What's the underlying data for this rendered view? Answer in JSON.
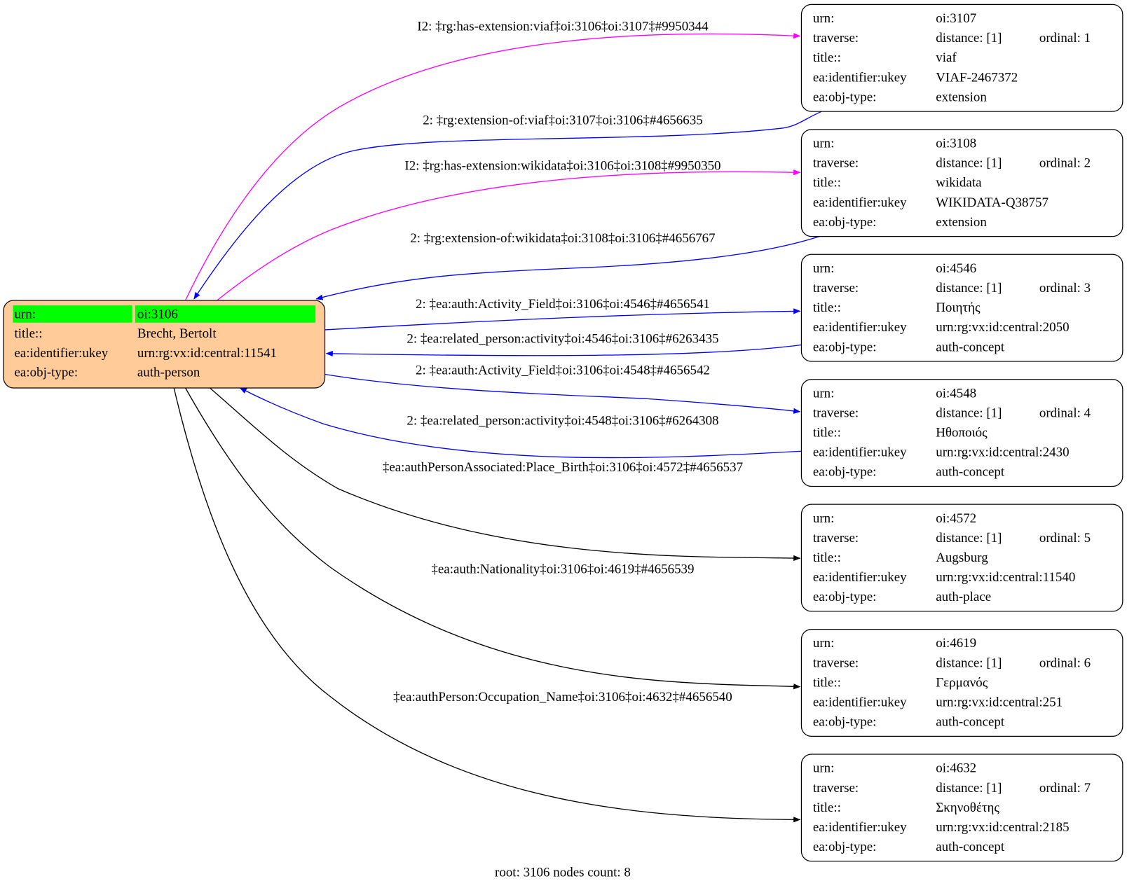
{
  "colors": {
    "root_fill": "#ffcc99",
    "urn_highlight": "#00ff00",
    "extension_edge": "#ff00ff",
    "relation_edge": "#0000ff",
    "default_edge": "#000000"
  },
  "field_labels": {
    "urn": "urn:",
    "traverse": "traverse:",
    "title": "title::",
    "ukey": "ea:identifier:ukey",
    "type": "ea:obj-type:"
  },
  "root": {
    "urn": "oi:3106",
    "title": "Brecht, Bertolt",
    "ukey": "urn:rg:vx:id:central:11541",
    "type": "auth-person"
  },
  "nodes": [
    {
      "urn": "oi:3107",
      "distance": "distance: [1]",
      "ordinal": "ordinal: 1",
      "title": "viaf",
      "ukey": "VIAF-2467372",
      "type": "extension"
    },
    {
      "urn": "oi:3108",
      "distance": "distance: [1]",
      "ordinal": "ordinal: 2",
      "title": "wikidata",
      "ukey": "WIKIDATA-Q38757",
      "type": "extension"
    },
    {
      "urn": "oi:4546",
      "distance": "distance: [1]",
      "ordinal": "ordinal: 3",
      "title": "Ποιητής",
      "ukey": "urn:rg:vx:id:central:2050",
      "type": "auth-concept"
    },
    {
      "urn": "oi:4548",
      "distance": "distance: [1]",
      "ordinal": "ordinal: 4",
      "title": "Ηθοποιός",
      "ukey": "urn:rg:vx:id:central:2430",
      "type": "auth-concept"
    },
    {
      "urn": "oi:4572",
      "distance": "distance: [1]",
      "ordinal": "ordinal: 5",
      "title": "Augsburg",
      "ukey": "urn:rg:vx:id:central:11540",
      "type": "auth-place"
    },
    {
      "urn": "oi:4619",
      "distance": "distance: [1]",
      "ordinal": "ordinal: 6",
      "title": "Γερμανός",
      "ukey": "urn:rg:vx:id:central:251",
      "type": "auth-concept"
    },
    {
      "urn": "oi:4632",
      "distance": "distance: [1]",
      "ordinal": "ordinal: 7",
      "title": "Σκηνοθέτης",
      "ukey": "urn:rg:vx:id:central:2185",
      "type": "auth-concept"
    }
  ],
  "edges": [
    {
      "label": "I2: ‡rg:has-extension:viaf‡oi:3106‡oi:3107‡#9950344",
      "color": "#ff00ff"
    },
    {
      "label": "2: ‡rg:extension-of:viaf‡oi:3107‡oi:3106‡#4656635",
      "color": "#0000ff"
    },
    {
      "label": "I2: ‡rg:has-extension:wikidata‡oi:3106‡oi:3108‡#9950350",
      "color": "#ff00ff"
    },
    {
      "label": "2: ‡rg:extension-of:wikidata‡oi:3108‡oi:3106‡#4656767",
      "color": "#0000ff"
    },
    {
      "label": "2: ‡ea:auth:Activity_Field‡oi:3106‡oi:4546‡#4656541",
      "color": "#0000ff"
    },
    {
      "label": "2: ‡ea:related_person:activity‡oi:4546‡oi:3106‡#6263435",
      "color": "#0000ff"
    },
    {
      "label": "2: ‡ea:auth:Activity_Field‡oi:3106‡oi:4548‡#4656542",
      "color": "#0000ff"
    },
    {
      "label": "2: ‡ea:related_person:activity‡oi:4548‡oi:3106‡#6264308",
      "color": "#0000ff"
    },
    {
      "label": "‡ea:authPersonAssociated:Place_Birth‡oi:3106‡oi:4572‡#4656537",
      "color": "#000000"
    },
    {
      "label": "‡ea:auth:Nationality‡oi:3106‡oi:4619‡#4656539",
      "color": "#000000"
    },
    {
      "label": "‡ea:authPerson:Occupation_Name‡oi:3106‡oi:4632‡#4656540",
      "color": "#000000"
    }
  ],
  "footer": "root: 3106 nodes count: 8"
}
